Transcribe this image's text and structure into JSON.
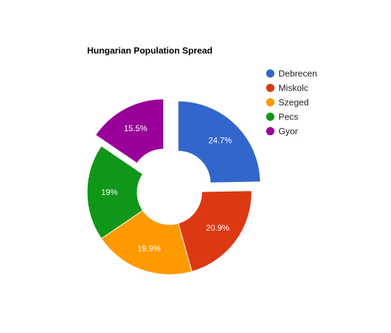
{
  "chart_data": {
    "type": "pie",
    "title": "Hungarian Population Spread",
    "donut": true,
    "exploded_slices": [
      "Debrecen",
      "Gyor"
    ],
    "legend_position": "right",
    "categories": [
      "Debrecen",
      "Miskolc",
      "Szeged",
      "Pecs",
      "Gyor"
    ],
    "values": [
      24.7,
      20.9,
      19.9,
      19.0,
      15.5
    ],
    "labels": [
      "24.7%",
      "20.9%",
      "19.9%",
      "19%",
      "15.5%"
    ],
    "colors": [
      "#3366cc",
      "#dc3912",
      "#ff9900",
      "#109618",
      "#990099"
    ]
  }
}
